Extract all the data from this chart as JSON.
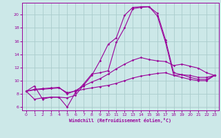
{
  "xlabel": "Windchill (Refroidissement éolien,°C)",
  "bg_color": "#cce8e8",
  "grid_color": "#aacccc",
  "line_color": "#990099",
  "xlim": [
    -0.5,
    23.5
  ],
  "ylim": [
    5.5,
    21.8
  ],
  "xticks": [
    0,
    1,
    2,
    3,
    4,
    5,
    6,
    7,
    8,
    9,
    10,
    11,
    12,
    13,
    14,
    15,
    16,
    17,
    18,
    19,
    20,
    21,
    22,
    23
  ],
  "yticks": [
    6,
    8,
    10,
    12,
    14,
    16,
    18,
    20
  ],
  "lines": [
    {
      "x": [
        0,
        1,
        2,
        3,
        4,
        5,
        6,
        7,
        8,
        9,
        10,
        11,
        12,
        13,
        14,
        15,
        16,
        17,
        18,
        19,
        20,
        21,
        22,
        23
      ],
      "y": [
        8.4,
        8.6,
        8.7,
        8.8,
        8.9,
        8.2,
        8.4,
        8.7,
        8.9,
        9.1,
        9.3,
        9.6,
        10.0,
        10.4,
        10.7,
        10.9,
        11.1,
        11.2,
        10.8,
        10.9,
        10.8,
        10.5,
        10.5,
        10.8
      ]
    },
    {
      "x": [
        0,
        1,
        2,
        3,
        4,
        5,
        6,
        7,
        8,
        9,
        10,
        11,
        12,
        13,
        14,
        15,
        16,
        17,
        18,
        19,
        20,
        21,
        22,
        23
      ],
      "y": [
        8.4,
        8.7,
        8.8,
        8.9,
        9.0,
        8.0,
        8.5,
        9.2,
        9.8,
        10.3,
        11.0,
        11.8,
        12.5,
        13.1,
        13.5,
        13.2,
        13.0,
        12.9,
        12.3,
        12.5,
        12.2,
        11.9,
        11.2,
        10.8
      ]
    },
    {
      "x": [
        0,
        1,
        2,
        3,
        4,
        5,
        6,
        7,
        8,
        9,
        10,
        11,
        12,
        13,
        14,
        15,
        16,
        17,
        18,
        19,
        20,
        21,
        22,
        23
      ],
      "y": [
        8.4,
        9.2,
        7.2,
        7.5,
        7.5,
        7.4,
        7.8,
        9.3,
        10.8,
        13.0,
        15.5,
        16.5,
        19.9,
        21.1,
        21.2,
        21.2,
        20.2,
        16.2,
        11.2,
        10.9,
        10.5,
        10.2,
        10.2,
        10.8
      ]
    },
    {
      "x": [
        0,
        1,
        2,
        3,
        4,
        5,
        6,
        7,
        8,
        9,
        10,
        11,
        12,
        13,
        14,
        15,
        16,
        17,
        18,
        19,
        20,
        21,
        22,
        23
      ],
      "y": [
        8.4,
        7.2,
        7.4,
        7.5,
        7.5,
        6.0,
        8.2,
        9.5,
        11.0,
        11.2,
        11.5,
        15.8,
        18.0,
        20.9,
        21.1,
        21.2,
        19.8,
        15.8,
        10.8,
        10.5,
        10.2,
        10.0,
        10.0,
        10.8
      ]
    }
  ]
}
